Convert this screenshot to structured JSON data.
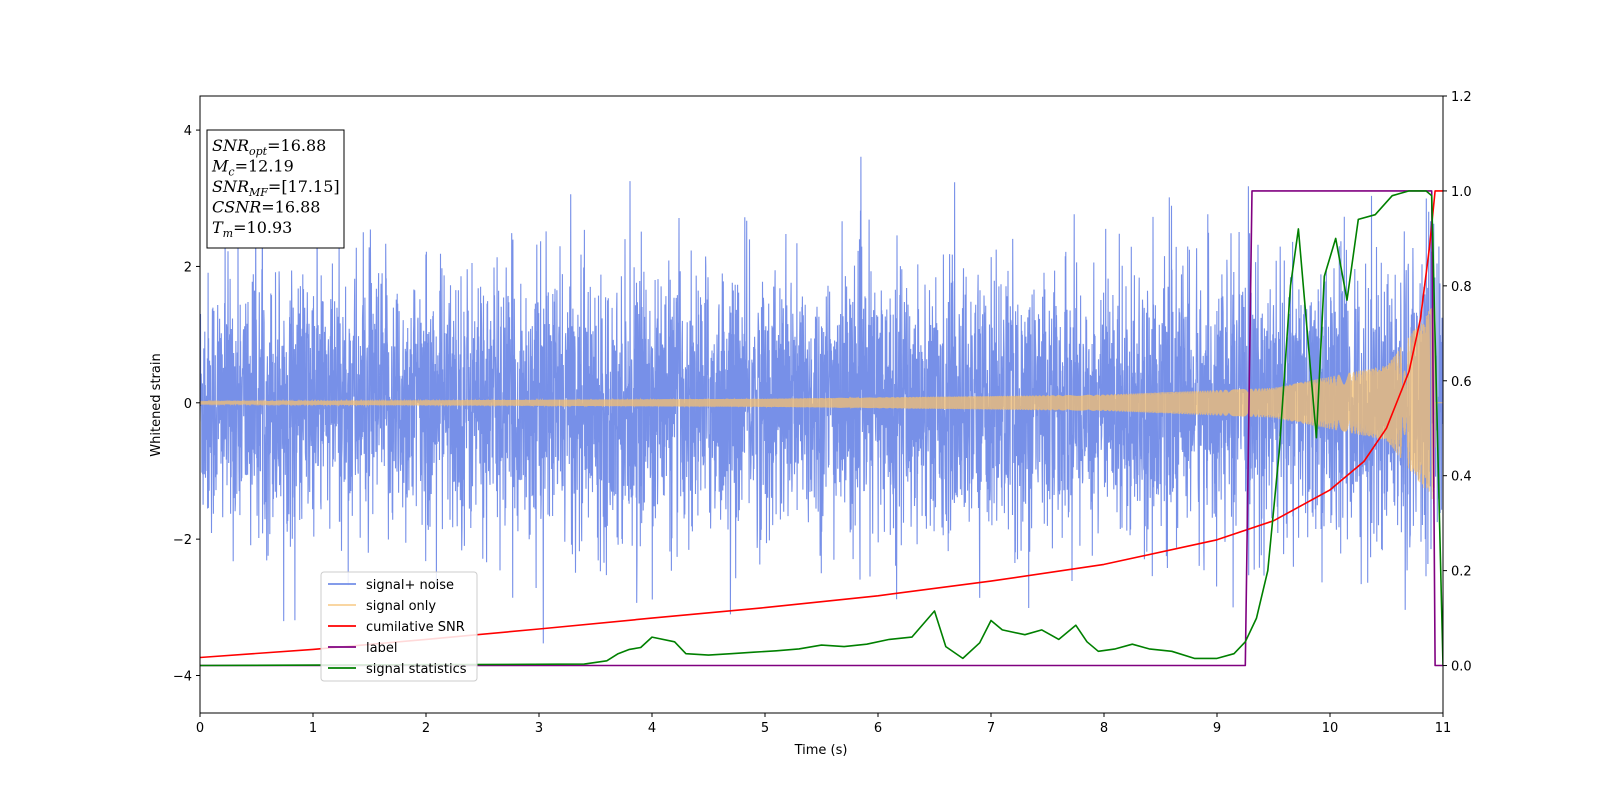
{
  "chart_data": {
    "type": "line",
    "xlabel": "Time (s)",
    "ylabel": "Whitened strain",
    "xlim": [
      0,
      11
    ],
    "ylim": [
      -4.55,
      4.5
    ],
    "y2lim": [
      -0.1,
      1.2
    ],
    "xticks": [
      "0",
      "1",
      "2",
      "3",
      "4",
      "5",
      "6",
      "7",
      "8",
      "9",
      "10",
      "11"
    ],
    "yticks": [
      "−4",
      "−2",
      "0",
      "2",
      "4"
    ],
    "y2ticks": [
      "0.0",
      "0.2",
      "0.4",
      "0.6",
      "0.8",
      "1.0",
      "1.2"
    ],
    "legend_position": "lower-left",
    "annotations": [
      {
        "label": "SNR",
        "sub": "opt",
        "value": "=16.88"
      },
      {
        "label": "M",
        "sub": "c",
        "value": "=12.19"
      },
      {
        "label": "SNR",
        "sub": "MF",
        "value": "=[17.15]"
      },
      {
        "label": "CSNR",
        "sub": "",
        "value": "=16.88"
      },
      {
        "label": "T",
        "sub": "m",
        "value": "=10.93"
      }
    ],
    "series": [
      {
        "name": "signal+ noise",
        "color": "#6b87e6",
        "axis": "left",
        "description_values": {
          "noise_std": 0.95,
          "typical_peak": 3.2,
          "max": 4.08,
          "min": -4.15
        }
      },
      {
        "name": "signal only",
        "color": "#f5c070",
        "axis": "left",
        "envelope": {
          "x": [
            0,
            5,
            8,
            9.5,
            10.5,
            10.9,
            10.93
          ],
          "amp": [
            0.02,
            0.06,
            0.12,
            0.22,
            0.55,
            1.4,
            1.5
          ]
        }
      },
      {
        "name": "cumilative SNR",
        "color": "#ff0000",
        "axis": "right",
        "x": [
          0,
          1,
          2,
          3,
          4,
          5,
          6,
          7,
          8,
          9,
          9.5,
          10,
          10.3,
          10.5,
          10.7,
          10.8,
          10.88,
          10.93,
          11
        ],
        "values": [
          0.017,
          0.034,
          0.055,
          0.077,
          0.1,
          0.122,
          0.147,
          0.178,
          0.213,
          0.265,
          0.305,
          0.37,
          0.43,
          0.5,
          0.62,
          0.73,
          0.88,
          1.0,
          1.0
        ]
      },
      {
        "name": "label",
        "color": "#800080",
        "axis": "right",
        "x": [
          0,
          9.25,
          9.31,
          10.9,
          10.93,
          11
        ],
        "values": [
          0,
          0,
          1,
          1,
          0,
          0
        ]
      },
      {
        "name": "signal statistics",
        "color": "#008000",
        "axis": "right",
        "x": [
          0,
          3.4,
          3.6,
          3.7,
          3.8,
          3.9,
          4.0,
          4.2,
          4.3,
          4.5,
          4.7,
          4.9,
          5.1,
          5.3,
          5.5,
          5.7,
          5.9,
          6.1,
          6.3,
          6.5,
          6.6,
          6.75,
          6.9,
          7.0,
          7.1,
          7.3,
          7.45,
          7.6,
          7.75,
          7.85,
          7.95,
          8.1,
          8.25,
          8.4,
          8.6,
          8.8,
          9.0,
          9.15,
          9.25,
          9.35,
          9.45,
          9.55,
          9.65,
          9.72,
          9.8,
          9.88,
          9.95,
          10.05,
          10.15,
          10.25,
          10.4,
          10.55,
          10.7,
          10.85,
          10.9,
          11
        ],
        "values": [
          0,
          0.003,
          0.01,
          0.025,
          0.034,
          0.038,
          0.06,
          0.05,
          0.025,
          0.022,
          0.025,
          0.028,
          0.031,
          0.035,
          0.043,
          0.04,
          0.045,
          0.055,
          0.06,
          0.115,
          0.04,
          0.015,
          0.048,
          0.095,
          0.075,
          0.065,
          0.075,
          0.055,
          0.085,
          0.05,
          0.03,
          0.035,
          0.045,
          0.035,
          0.03,
          0.015,
          0.015,
          0.025,
          0.05,
          0.1,
          0.2,
          0.45,
          0.8,
          0.92,
          0.7,
          0.48,
          0.82,
          0.9,
          0.77,
          0.94,
          0.95,
          0.99,
          1.0,
          1.0,
          0.99,
          0.0
        ]
      }
    ]
  }
}
